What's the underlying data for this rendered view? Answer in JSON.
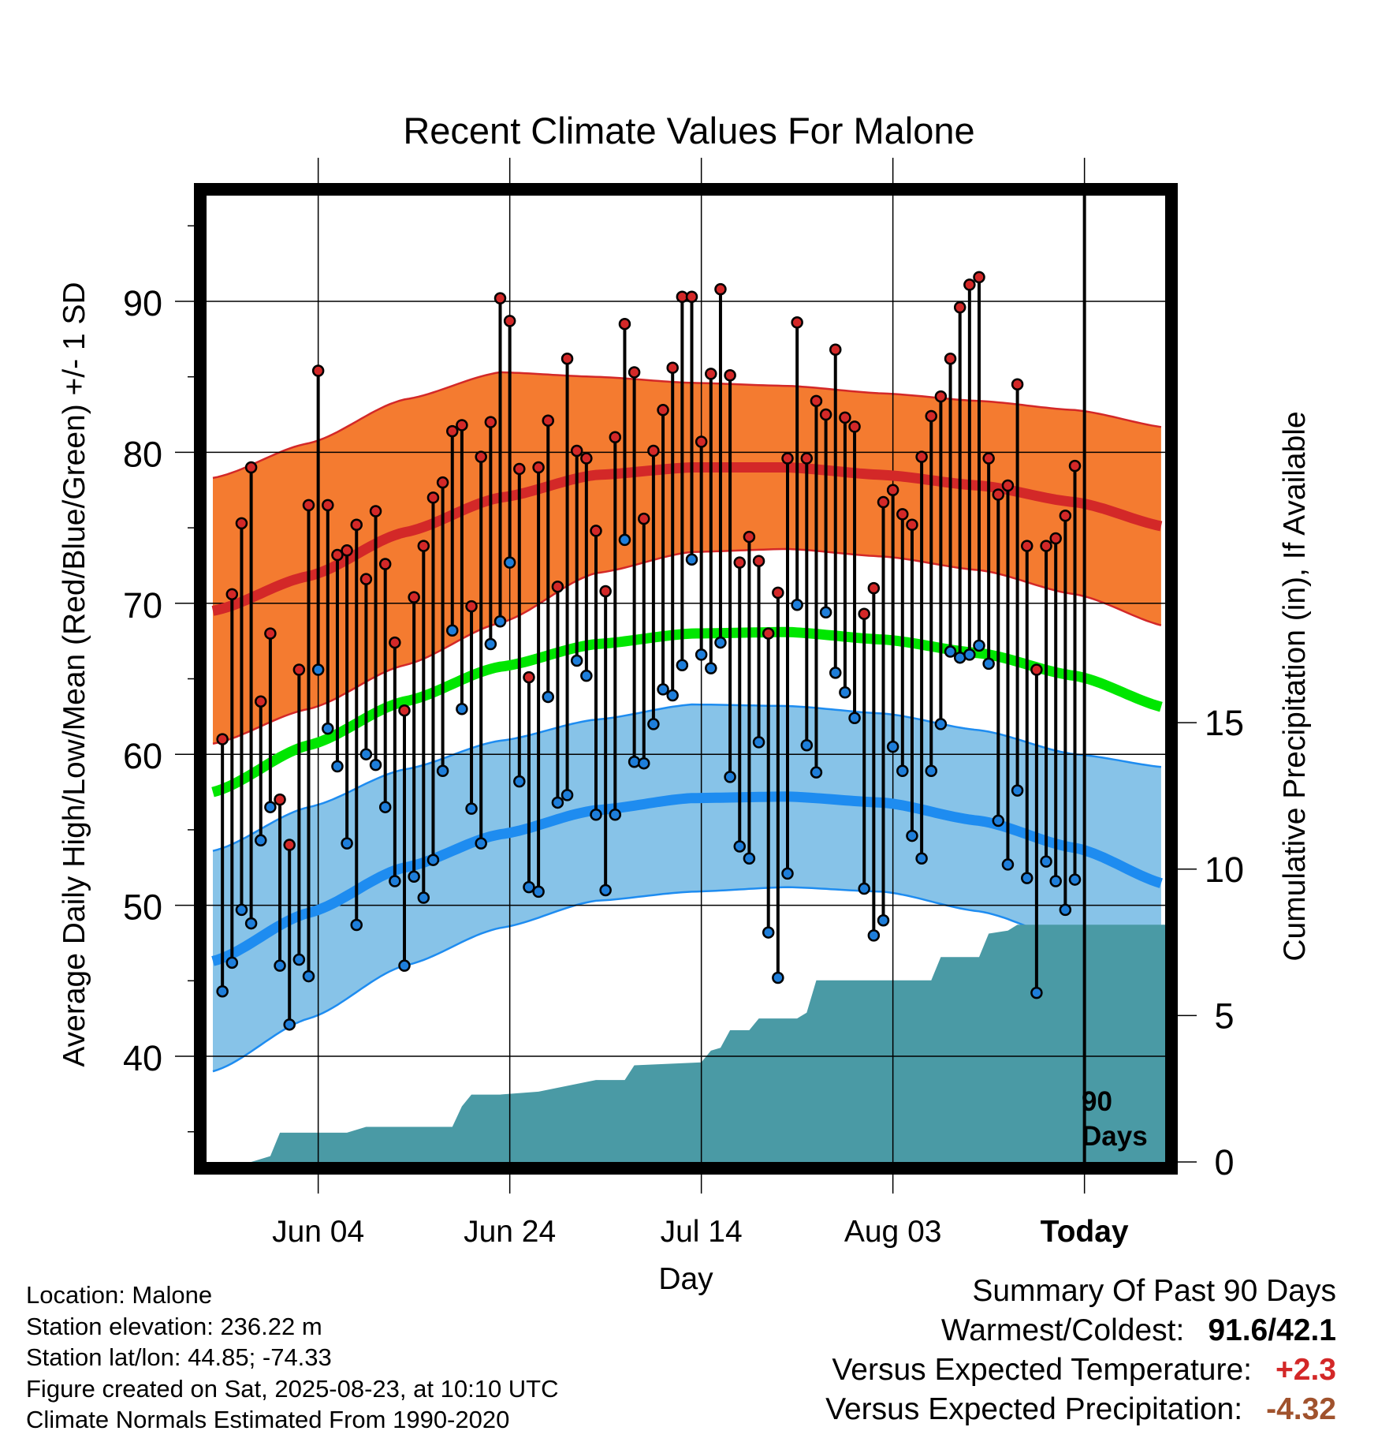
{
  "chart_data": {
    "type": "line",
    "title": "Recent Climate Values For Malone",
    "xlabel": "Day",
    "ylabel": "Average Daily High/Low/Mean (Red/Blue/Green) +/- 1 SD",
    "ylabel_right": "Cumulative Precipitation (in), If Available",
    "ylim": [
      33,
      97
    ],
    "ylim_right": [
      0,
      33
    ],
    "y_ticks": [
      40,
      50,
      60,
      70,
      80,
      90
    ],
    "y_ticks_right": [
      0,
      5,
      10,
      15
    ],
    "x_ticks": [
      {
        "label": "Jun 04",
        "day": 11
      },
      {
        "label": "Jun 24",
        "day": 31
      },
      {
        "label": "Jul 14",
        "day": 51
      },
      {
        "label": "Aug 03",
        "day": 71
      },
      {
        "label": "Today",
        "day": 91
      }
    ],
    "x_start_date": "May 24",
    "today_marker": {
      "day": 91,
      "label_line1": "90",
      "label_line2": "Days"
    },
    "grid": true,
    "daily_highs": [
      61,
      70.6,
      75.3,
      79,
      63.5,
      68,
      57,
      54,
      65.6,
      76.5,
      85.4,
      76.5,
      73.2,
      73.5,
      75.2,
      71.6,
      76.1,
      72.6,
      67.4,
      62.9,
      70.4,
      73.8,
      77,
      78,
      81.4,
      81.8,
      69.8,
      79.7,
      82,
      90.2,
      88.7,
      78.9,
      65.1,
      79,
      82.1,
      71.1,
      86.2,
      80.1,
      79.6,
      74.8,
      70.8,
      81,
      88.5,
      85.3,
      75.6,
      80.1,
      82.8,
      85.6,
      90.3,
      90.3,
      80.7,
      85.2,
      90.8,
      85.1,
      72.7,
      74.4,
      72.8,
      68,
      70.7,
      79.6,
      88.6,
      79.6,
      83.4,
      82.5,
      86.8,
      82.3,
      81.7,
      69.3,
      71,
      76.7,
      77.5,
      75.9,
      75.2,
      79.7,
      82.4,
      83.7,
      86.2,
      89.6,
      91.1,
      91.6,
      79.6,
      77.2,
      77.8,
      84.5,
      73.8,
      65.6,
      73.8,
      74.3,
      75.8,
      79.1
    ],
    "daily_lows": [
      44.3,
      46.2,
      49.7,
      48.8,
      54.3,
      56.5,
      46,
      42.1,
      46.4,
      45.3,
      65.6,
      61.7,
      59.2,
      54.1,
      48.7,
      60,
      59.3,
      56.5,
      51.6,
      46,
      51.9,
      50.5,
      53,
      58.9,
      68.2,
      63,
      56.4,
      54.1,
      67.3,
      68.8,
      72.7,
      58.2,
      51.2,
      50.9,
      63.8,
      56.8,
      57.3,
      66.2,
      65.2,
      56,
      51,
      56,
      74.2,
      59.5,
      59.4,
      62,
      64.3,
      63.9,
      65.9,
      72.9,
      66.6,
      65.7,
      67.4,
      58.5,
      53.9,
      53.1,
      60.8,
      48.2,
      45.2,
      52.1,
      69.9,
      60.6,
      58.8,
      69.4,
      65.4,
      64.1,
      62.4,
      51.1,
      48,
      49,
      60.5,
      58.9,
      54.6,
      53.1,
      58.9,
      62,
      66.8,
      66.4,
      66.6,
      67.2,
      66,
      55.6,
      52.7,
      57.6,
      51.8,
      44.2,
      52.9,
      51.6,
      49.7,
      51.7
    ],
    "normal_high": [
      {
        "day": 0,
        "mean": 69.5,
        "sd": 8.8
      },
      {
        "day": 10,
        "mean": 71.8,
        "sd": 8.8
      },
      {
        "day": 20,
        "mean": 74.7,
        "sd": 8.8
      },
      {
        "day": 30,
        "mean": 77.0,
        "sd": 8.3
      },
      {
        "day": 40,
        "mean": 78.5,
        "sd": 6.5
      },
      {
        "day": 50,
        "mean": 79.0,
        "sd": 5.6
      },
      {
        "day": 60,
        "mean": 79.0,
        "sd": 5.4
      },
      {
        "day": 70,
        "mean": 78.5,
        "sd": 5.4
      },
      {
        "day": 80,
        "mean": 77.8,
        "sd": 5.6
      },
      {
        "day": 90,
        "mean": 76.7,
        "sd": 6.1
      },
      {
        "day": 100,
        "mean": 75.0,
        "sd": 6.6
      }
    ],
    "normal_low": [
      {
        "day": 0,
        "mean": 46.3,
        "sd": 7.3
      },
      {
        "day": 10,
        "mean": 49.5,
        "sd": 7.0
      },
      {
        "day": 20,
        "mean": 52.5,
        "sd": 6.5
      },
      {
        "day": 30,
        "mean": 54.7,
        "sd": 6.2
      },
      {
        "day": 40,
        "mean": 56.3,
        "sd": 6.0
      },
      {
        "day": 50,
        "mean": 57.1,
        "sd": 6.2
      },
      {
        "day": 60,
        "mean": 57.2,
        "sd": 6.0
      },
      {
        "day": 70,
        "mean": 56.8,
        "sd": 5.9
      },
      {
        "day": 80,
        "mean": 55.6,
        "sd": 6.0
      },
      {
        "day": 90,
        "mean": 53.8,
        "sd": 6.2
      },
      {
        "day": 100,
        "mean": 51.3,
        "sd": 7.8
      }
    ],
    "normal_mean": [
      {
        "day": 0,
        "mean": 57.5
      },
      {
        "day": 10,
        "mean": 60.6
      },
      {
        "day": 20,
        "mean": 63.5
      },
      {
        "day": 30,
        "mean": 65.8
      },
      {
        "day": 40,
        "mean": 67.3
      },
      {
        "day": 50,
        "mean": 68.0
      },
      {
        "day": 60,
        "mean": 68.1
      },
      {
        "day": 70,
        "mean": 67.6
      },
      {
        "day": 80,
        "mean": 66.7
      },
      {
        "day": 90,
        "mean": 65.2
      },
      {
        "day": 100,
        "mean": 63.0
      }
    ],
    "cumulative_precip": [
      {
        "day": 0,
        "value": 0
      },
      {
        "day": 4,
        "value": 0
      },
      {
        "day": 6,
        "value": 0.2
      },
      {
        "day": 7,
        "value": 1.0
      },
      {
        "day": 14,
        "value": 1.0
      },
      {
        "day": 16,
        "value": 1.2
      },
      {
        "day": 25,
        "value": 1.2
      },
      {
        "day": 26,
        "value": 1.9
      },
      {
        "day": 27,
        "value": 2.3
      },
      {
        "day": 30,
        "value": 2.3
      },
      {
        "day": 34,
        "value": 2.4
      },
      {
        "day": 37,
        "value": 2.6
      },
      {
        "day": 40,
        "value": 2.8
      },
      {
        "day": 43,
        "value": 2.8
      },
      {
        "day": 44,
        "value": 3.3
      },
      {
        "day": 51,
        "value": 3.4
      },
      {
        "day": 52,
        "value": 3.8
      },
      {
        "day": 53,
        "value": 3.9
      },
      {
        "day": 54,
        "value": 4.5
      },
      {
        "day": 56,
        "value": 4.5
      },
      {
        "day": 57,
        "value": 4.9
      },
      {
        "day": 61,
        "value": 4.9
      },
      {
        "day": 62,
        "value": 5.1
      },
      {
        "day": 63,
        "value": 6.2
      },
      {
        "day": 75,
        "value": 6.2
      },
      {
        "day": 76,
        "value": 7.0
      },
      {
        "day": 80,
        "value": 7.0
      },
      {
        "day": 81,
        "value": 7.8
      },
      {
        "day": 83,
        "value": 7.9
      },
      {
        "day": 84,
        "value": 8.1
      },
      {
        "day": 100,
        "value": 8.1
      }
    ],
    "colors": {
      "high_band": "#F47B30",
      "high_line": "#D32828",
      "low_band": "#87C3E8",
      "low_line": "#1E8CF0",
      "mean_line": "#00E600",
      "precip_fill": "#4A9AA5",
      "high_marker": "#D32828",
      "low_marker": "#1E7EDA"
    }
  },
  "info": {
    "location": "Location: Malone",
    "elevation": "Station elevation: 236.22 m",
    "latlon": "Station lat/lon: 44.85; -74.33",
    "created": "Figure created on Sat, 2025-08-23, at 10:10 UTC",
    "normals": "Climate Normals Estimated From 1990-2020"
  },
  "summary": {
    "title": "Summary Of Past 90 Days",
    "warmest_label": "Warmest/Coldest:",
    "warmest_value": "91.6/42.1",
    "temp_label": "Versus Expected Temperature:",
    "temp_value": "+2.3",
    "temp_color": "#D32828",
    "precip_label": "Versus Expected Precipitation:",
    "precip_value": "-4.32",
    "precip_color": "#A0522D"
  }
}
